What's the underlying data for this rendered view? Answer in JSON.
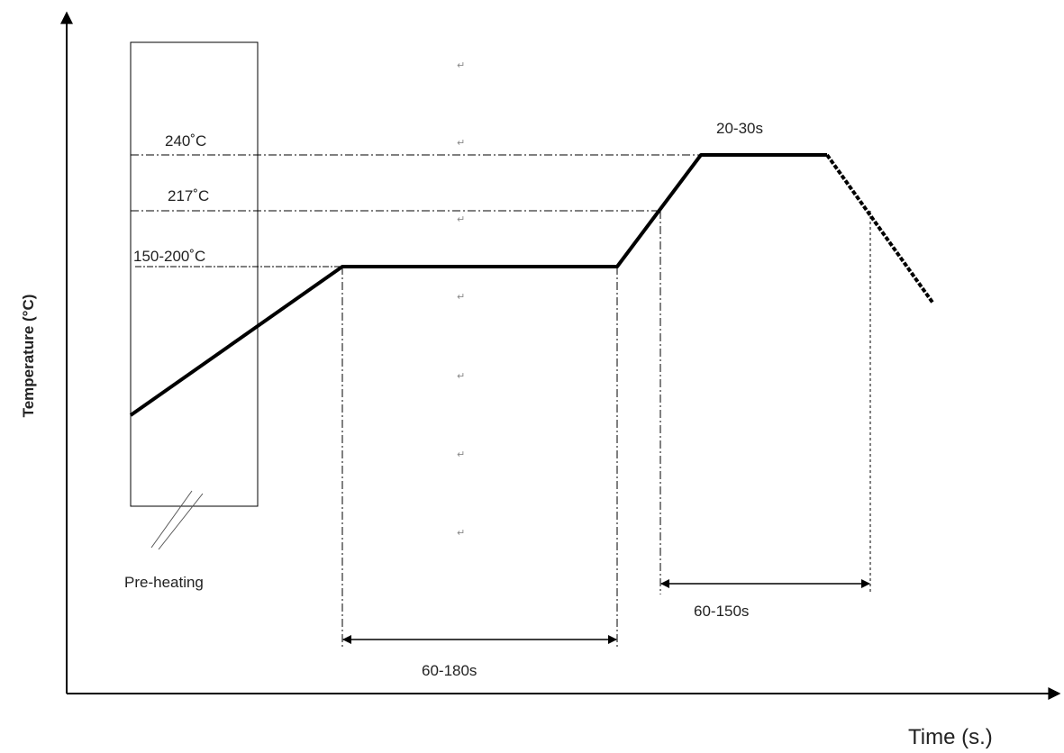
{
  "axes": {
    "y_label": "Temperature  (°C)",
    "x_label": "Time (s.)"
  },
  "temperature_labels": {
    "peak": "240˚C",
    "liquidus": "217˚C",
    "soak": "150-200˚C"
  },
  "zones": {
    "preheat": "Pre-heating",
    "soak_time": "60-180s",
    "above_liquidus_time": "60-150s",
    "peak_time": "20-30s"
  },
  "return_mark": "↵"
}
